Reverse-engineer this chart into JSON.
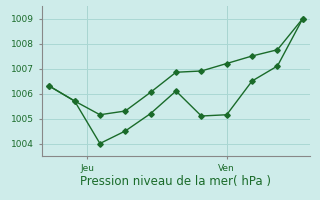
{
  "xlabel": "Pression niveau de la mer( hPa )",
  "bg_color": "#ceecea",
  "grid_color": "#aad8d4",
  "line_color": "#1a6b2a",
  "line1_x": [
    0,
    1,
    2,
    3,
    4,
    5,
    6,
    7,
    8,
    9,
    10
  ],
  "line1_y": [
    1006.3,
    1005.7,
    1004.0,
    1004.5,
    1005.2,
    1006.1,
    1005.1,
    1005.15,
    1006.5,
    1007.1,
    1009.0
  ],
  "line2_x": [
    0,
    1,
    2,
    3,
    4,
    5,
    6,
    7,
    8,
    9,
    10
  ],
  "line2_y": [
    1006.3,
    1005.7,
    1005.15,
    1005.3,
    1006.05,
    1006.85,
    1006.9,
    1007.2,
    1007.5,
    1007.75,
    1009.0
  ],
  "ylim": [
    1003.5,
    1009.5
  ],
  "yticks": [
    1004,
    1005,
    1006,
    1007,
    1008,
    1009
  ],
  "jeu_x": 1.5,
  "ven_x": 7.0,
  "xtick_positions": [
    1.5,
    7.0
  ],
  "xtick_labels": [
    "Jeu",
    "Ven"
  ],
  "vline_x": [
    1.5,
    7.0
  ],
  "marker_size": 2.8,
  "line_width": 1.0,
  "tick_fontsize": 6.5,
  "xlabel_fontsize": 8.5,
  "spine_color": "#888888"
}
